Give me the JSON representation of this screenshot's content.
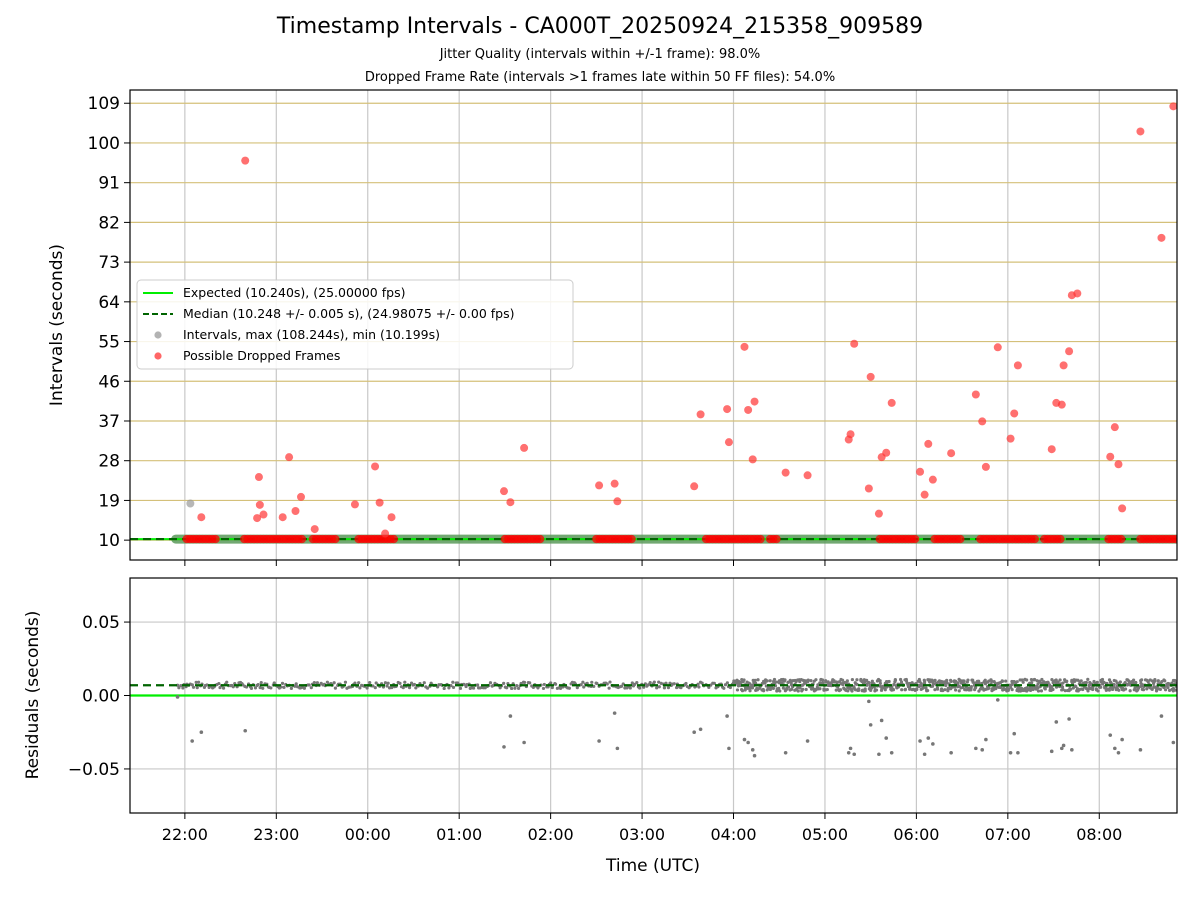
{
  "chart_data": {
    "type": "scatter",
    "title": "Timestamp Intervals - CA000T_20250924_215358_909589",
    "subtitle_1": "Jitter Quality (intervals within +/-1 frame): 98.0%",
    "subtitle_2": "Dropped Frame Rate (intervals >1 frames late within 50 FF files): 54.0%",
    "xlabel": "Time (UTC)",
    "x_ticks": [
      "22:00",
      "23:00",
      "00:00",
      "01:00",
      "02:00",
      "03:00",
      "04:00",
      "05:00",
      "06:00",
      "07:00",
      "08:00"
    ],
    "x_range_hours": [
      -0.6,
      10.85
    ],
    "top_panel": {
      "ylabel": "Intervals (seconds)",
      "ylim": [
        5.5,
        112
      ],
      "yticks": [
        10,
        19,
        28,
        37,
        46,
        55,
        64,
        73,
        82,
        91,
        100,
        109
      ],
      "expected_interval": 10.24,
      "median_interval": 10.248,
      "legend": [
        {
          "label": "Expected (10.240s), (25.00000 fps)",
          "kind": "solid-line",
          "color": "#00ee00"
        },
        {
          "label": "Median (10.248 +/- 0.005 s), (24.98075 +/- 0.00 fps)",
          "kind": "dashed-line",
          "color": "#006400"
        },
        {
          "label": "Intervals, max (108.244s), min (10.199s)",
          "kind": "dot",
          "color": "#999999"
        },
        {
          "label": "Possible Dropped Frames",
          "kind": "dot",
          "color": "#ff3333"
        }
      ],
      "normal_intervals_hours_ranges": [
        [
          -0.1,
          10.85
        ]
      ],
      "gray_points": [
        [
          0.06,
          18.3
        ]
      ],
      "dropped_band_ranges_hours": [
        [
          0.02,
          0.35
        ],
        [
          0.65,
          1.3
        ],
        [
          1.4,
          1.65
        ],
        [
          1.9,
          2.3
        ],
        [
          3.5,
          3.9
        ],
        [
          4.5,
          4.9
        ],
        [
          5.7,
          6.3
        ],
        [
          6.4,
          6.5
        ],
        [
          7.6,
          8.0
        ],
        [
          8.2,
          8.5
        ],
        [
          8.7,
          9.3
        ],
        [
          9.4,
          9.6
        ],
        [
          10.1,
          10.25
        ],
        [
          10.45,
          10.85
        ]
      ],
      "dropped_points": [
        [
          0.18,
          15.2
        ],
        [
          0.66,
          96.0
        ],
        [
          0.81,
          24.3
        ],
        [
          0.79,
          15.0
        ],
        [
          0.82,
          18.0
        ],
        [
          0.86,
          15.8
        ],
        [
          1.07,
          15.2
        ],
        [
          1.14,
          28.8
        ],
        [
          1.21,
          16.6
        ],
        [
          1.27,
          19.8
        ],
        [
          1.42,
          12.5
        ],
        [
          1.86,
          18.1
        ],
        [
          2.08,
          26.7
        ],
        [
          2.13,
          18.5
        ],
        [
          2.19,
          11.5
        ],
        [
          2.26,
          15.2
        ],
        [
          3.49,
          21.1
        ],
        [
          3.56,
          18.6
        ],
        [
          3.71,
          30.9
        ],
        [
          4.53,
          22.4
        ],
        [
          4.7,
          22.8
        ],
        [
          4.73,
          18.8
        ],
        [
          5.57,
          22.2
        ],
        [
          5.64,
          38.5
        ],
        [
          5.95,
          32.2
        ],
        [
          5.93,
          39.7
        ],
        [
          6.12,
          53.8
        ],
        [
          6.16,
          39.5
        ],
        [
          6.21,
          28.3
        ],
        [
          6.23,
          41.4
        ],
        [
          6.57,
          25.3
        ],
        [
          6.81,
          24.7
        ],
        [
          7.26,
          32.8
        ],
        [
          7.28,
          34.0
        ],
        [
          7.32,
          54.5
        ],
        [
          7.48,
          21.7
        ],
        [
          7.5,
          47.0
        ],
        [
          7.59,
          16.0
        ],
        [
          7.62,
          28.8
        ],
        [
          7.67,
          29.8
        ],
        [
          7.73,
          41.1
        ],
        [
          8.04,
          25.5
        ],
        [
          8.09,
          20.3
        ],
        [
          8.13,
          31.8
        ],
        [
          8.18,
          23.7
        ],
        [
          8.38,
          29.7
        ],
        [
          8.65,
          43.0
        ],
        [
          8.72,
          36.9
        ],
        [
          8.76,
          26.6
        ],
        [
          8.89,
          53.7
        ],
        [
          9.03,
          33.0
        ],
        [
          9.07,
          38.7
        ],
        [
          9.11,
          49.6
        ],
        [
          9.48,
          30.6
        ],
        [
          9.53,
          41.1
        ],
        [
          9.59,
          40.7
        ],
        [
          9.61,
          49.6
        ],
        [
          9.67,
          52.8
        ],
        [
          9.7,
          65.5
        ],
        [
          9.76,
          65.9
        ],
        [
          10.12,
          28.9
        ],
        [
          10.17,
          35.6
        ],
        [
          10.21,
          27.2
        ],
        [
          10.25,
          17.2
        ],
        [
          10.45,
          102.6
        ],
        [
          10.68,
          78.5
        ],
        [
          10.81,
          108.3
        ]
      ]
    },
    "bottom_panel": {
      "ylabel": "Residuals (seconds)",
      "ylim": [
        -0.08,
        0.08
      ],
      "yticks": [
        -0.05,
        0.0,
        0.05
      ],
      "ytick_labels": [
        "−0.05",
        "0.00",
        "0.05"
      ],
      "expected_line": 0.0,
      "median_line": 0.007,
      "outlier_points": [
        [
          -0.08,
          -0.001
        ],
        [
          0.08,
          -0.031
        ],
        [
          0.18,
          -0.025
        ],
        [
          0.66,
          -0.024
        ],
        [
          3.49,
          -0.035
        ],
        [
          3.56,
          -0.014
        ],
        [
          3.71,
          -0.032
        ],
        [
          4.53,
          -0.031
        ],
        [
          4.7,
          -0.012
        ],
        [
          4.73,
          -0.036
        ],
        [
          5.57,
          -0.025
        ],
        [
          5.64,
          -0.023
        ],
        [
          5.95,
          -0.036
        ],
        [
          5.93,
          -0.014
        ],
        [
          6.12,
          -0.03
        ],
        [
          6.16,
          -0.032
        ],
        [
          6.21,
          -0.037
        ],
        [
          6.23,
          -0.041
        ],
        [
          6.57,
          -0.039
        ],
        [
          6.81,
          -0.031
        ],
        [
          7.26,
          -0.039
        ],
        [
          7.28,
          -0.036
        ],
        [
          7.32,
          -0.04
        ],
        [
          7.48,
          -0.004
        ],
        [
          7.5,
          -0.02
        ],
        [
          7.59,
          -0.04
        ],
        [
          7.62,
          -0.017
        ],
        [
          7.67,
          -0.029
        ],
        [
          7.73,
          -0.039
        ],
        [
          8.04,
          -0.031
        ],
        [
          8.09,
          -0.04
        ],
        [
          8.13,
          -0.029
        ],
        [
          8.18,
          -0.033
        ],
        [
          8.38,
          -0.039
        ],
        [
          8.65,
          -0.036
        ],
        [
          8.72,
          -0.037
        ],
        [
          8.76,
          -0.03
        ],
        [
          8.89,
          -0.003
        ],
        [
          9.03,
          -0.039
        ],
        [
          9.07,
          -0.026
        ],
        [
          9.11,
          -0.039
        ],
        [
          9.48,
          -0.038
        ],
        [
          9.53,
          -0.018
        ],
        [
          9.59,
          -0.036
        ],
        [
          9.61,
          -0.034
        ],
        [
          9.67,
          -0.016
        ],
        [
          9.7,
          -0.037
        ],
        [
          10.12,
          -0.027
        ],
        [
          10.17,
          -0.036
        ],
        [
          10.21,
          -0.039
        ],
        [
          10.25,
          -0.03
        ],
        [
          10.45,
          -0.037
        ],
        [
          10.68,
          -0.014
        ],
        [
          10.81,
          -0.032
        ]
      ]
    }
  }
}
